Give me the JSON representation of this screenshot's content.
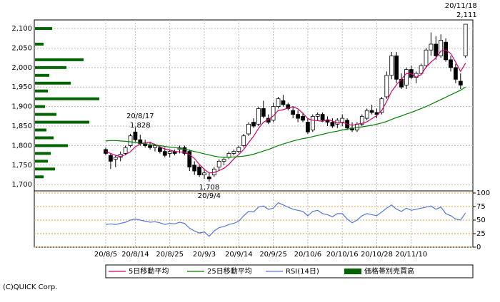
{
  "chart_data": {
    "type": "candlestick",
    "categories": [
      "20/8/5",
      null,
      null,
      null,
      null,
      null,
      "20/8/14",
      null,
      null,
      null,
      null,
      null,
      null,
      "20/8/25",
      null,
      null,
      null,
      null,
      null,
      null,
      "20/9/3",
      null,
      null,
      null,
      null,
      null,
      null,
      "20/9/14",
      null,
      null,
      null,
      null,
      null,
      null,
      "20/9/25",
      null,
      null,
      null,
      null,
      null,
      null,
      "20/10/6",
      null,
      null,
      null,
      null,
      null,
      null,
      "20/10/16",
      null,
      null,
      null,
      null,
      null,
      null,
      "20/10/28",
      null,
      null,
      null,
      null,
      null,
      null,
      "20/11/10",
      null,
      null,
      null,
      null,
      null,
      null,
      null,
      null,
      null,
      null,
      null
    ],
    "open": [
      1790,
      1775,
      1765,
      1770,
      1780,
      1800,
      1835,
      1815,
      1805,
      1800,
      1795,
      1795,
      1785,
      1780,
      1785,
      1790,
      1795,
      1785,
      1750,
      1745,
      1725,
      1720,
      1725,
      1745,
      1760,
      1770,
      1780,
      1785,
      1800,
      1830,
      1860,
      1855,
      1895,
      1870,
      1865,
      1900,
      1915,
      1905,
      1890,
      1880,
      1875,
      1860,
      1840,
      1875,
      1880,
      1865,
      1860,
      1855,
      1860,
      1865,
      1845,
      1840,
      1855,
      1870,
      1890,
      1885,
      1885,
      1925,
      1980,
      2030,
      1970,
      1955,
      1995,
      1975,
      1985,
      2005,
      2045,
      2060,
      2030,
      2065,
      2020,
      2000,
      1965,
      2030
    ],
    "high": [
      1795,
      1780,
      1775,
      1785,
      1800,
      1830,
      1845,
      1828,
      1815,
      1810,
      1805,
      1800,
      1795,
      1790,
      1790,
      1800,
      1800,
      1790,
      1760,
      1750,
      1740,
      1730,
      1745,
      1765,
      1770,
      1785,
      1790,
      1800,
      1830,
      1860,
      1870,
      1900,
      1915,
      1880,
      1910,
      1925,
      1930,
      1910,
      1900,
      1890,
      1885,
      1870,
      1880,
      1885,
      1885,
      1875,
      1870,
      1870,
      1880,
      1870,
      1860,
      1860,
      1880,
      1895,
      1905,
      1895,
      1925,
      1990,
      2040,
      2040,
      1985,
      2000,
      2005,
      1990,
      2010,
      2050,
      2090,
      2080,
      2085,
      2075,
      2030,
      2010,
      1985,
      2111
    ],
    "low": [
      1775,
      1740,
      1745,
      1760,
      1775,
      1795,
      1810,
      1800,
      1795,
      1790,
      1785,
      1780,
      1770,
      1770,
      1775,
      1780,
      1775,
      1735,
      1725,
      1720,
      1715,
      1708,
      1720,
      1735,
      1750,
      1765,
      1775,
      1780,
      1795,
      1825,
      1845,
      1850,
      1870,
      1855,
      1860,
      1895,
      1900,
      1890,
      1870,
      1860,
      1860,
      1830,
      1835,
      1865,
      1860,
      1850,
      1845,
      1845,
      1850,
      1840,
      1835,
      1835,
      1850,
      1865,
      1880,
      1870,
      1880,
      1920,
      1970,
      1960,
      1945,
      1945,
      1970,
      1960,
      1980,
      2000,
      2030,
      2020,
      2025,
      2015,
      1990,
      1960,
      1945,
      2025
    ],
    "close": [
      1780,
      1760,
      1770,
      1778,
      1795,
      1825,
      1815,
      1805,
      1800,
      1795,
      1800,
      1785,
      1775,
      1785,
      1780,
      1795,
      1780,
      1745,
      1735,
      1725,
      1730,
      1715,
      1740,
      1760,
      1765,
      1780,
      1785,
      1795,
      1825,
      1855,
      1850,
      1895,
      1875,
      1860,
      1900,
      1920,
      1905,
      1895,
      1880,
      1870,
      1865,
      1835,
      1875,
      1880,
      1865,
      1860,
      1850,
      1865,
      1870,
      1845,
      1840,
      1855,
      1875,
      1890,
      1885,
      1880,
      1920,
      1980,
      2030,
      1970,
      1950,
      1995,
      1975,
      1985,
      2005,
      2045,
      2060,
      2030,
      2070,
      2020,
      2000,
      1970,
      1955,
      2111
    ],
    "ylim": [
      1684,
      2122
    ],
    "yticks": [
      {
        "value": 1700,
        "label": "1,700"
      },
      {
        "value": 1750,
        "label": "1,750"
      },
      {
        "value": 1800,
        "label": "1,800"
      },
      {
        "value": 1850,
        "label": "1,850"
      },
      {
        "value": 1900,
        "label": "1,900"
      },
      {
        "value": 1950,
        "label": "1,950"
      },
      {
        "value": 2000,
        "label": "2,000"
      },
      {
        "value": 2050,
        "label": "2,050"
      },
      {
        "value": 2100,
        "label": "2,100"
      }
    ],
    "series": [
      {
        "name": "5日移動平均",
        "color": "#d0006f",
        "values": [
          1785,
          1780,
          1775,
          1772,
          1777,
          1784,
          1797,
          1804,
          1808,
          1808,
          1803,
          1797,
          1791,
          1789,
          1785,
          1784,
          1783,
          1777,
          1767,
          1752,
          1739,
          1730,
          1731,
          1736,
          1742,
          1752,
          1766,
          1777,
          1790,
          1808,
          1824,
          1844,
          1860,
          1867,
          1876,
          1890,
          1892,
          1896,
          1900,
          1894,
          1883,
          1869,
          1865,
          1864,
          1862,
          1867,
          1863,
          1858,
          1860,
          1855,
          1852,
          1855,
          1857,
          1861,
          1869,
          1877,
          1890,
          1913,
          1939,
          1956,
          1970,
          1985,
          1984,
          1975,
          1982,
          2001,
          2014,
          2025,
          2042,
          2045,
          2036,
          2014,
          1990,
          2011
        ]
      },
      {
        "name": "25日移動平均",
        "color": "#008000",
        "values": [
          1812,
          1813,
          1813,
          1812,
          1811,
          1810,
          1808,
          1806,
          1805,
          1803,
          1801,
          1800,
          1798,
          1796,
          1795,
          1793,
          1791,
          1788,
          1785,
          1782,
          1779,
          1776,
          1773,
          1771,
          1770,
          1770,
          1771,
          1772,
          1773,
          1775,
          1778,
          1782,
          1786,
          1790,
          1795,
          1800,
          1804,
          1808,
          1812,
          1815,
          1818,
          1820,
          1823,
          1826,
          1829,
          1832,
          1835,
          1837,
          1840,
          1842,
          1844,
          1846,
          1848,
          1850,
          1852,
          1855,
          1858,
          1862,
          1867,
          1872,
          1876,
          1881,
          1885,
          1890,
          1895,
          1900,
          1906,
          1912,
          1918,
          1924,
          1930,
          1936,
          1942,
          1950
        ]
      }
    ],
    "rsi": {
      "name": "RSI(14日)",
      "color": "#5577dd",
      "ylim": [
        0,
        100
      ],
      "yticks": [
        0,
        25,
        50,
        75,
        100
      ],
      "values": [
        42,
        43,
        42,
        44,
        46,
        50,
        52,
        50,
        48,
        46,
        47,
        45,
        42,
        44,
        43,
        46,
        44,
        35,
        30,
        26,
        28,
        20,
        30,
        36,
        38,
        42,
        44,
        48,
        58,
        66,
        65,
        74,
        76,
        70,
        72,
        82,
        78,
        74,
        70,
        68,
        66,
        58,
        66,
        68,
        62,
        60,
        56,
        62,
        62,
        52,
        45,
        50,
        58,
        62,
        60,
        58,
        65,
        72,
        78,
        70,
        66,
        72,
        68,
        70,
        72,
        74,
        76,
        70,
        74,
        62,
        58,
        52,
        50,
        63
      ]
    },
    "price_volume": {
      "name": "価格帯別売買高",
      "color": "#006400",
      "xlim": [
        0,
        100
      ],
      "prices": [
        2100,
        2060,
        2020,
        2000,
        1980,
        1960,
        1940,
        1920,
        1900,
        1880,
        1860,
        1840,
        1820,
        1800,
        1780,
        1760,
        1740,
        1720
      ],
      "values": [
        24,
        12,
        68,
        44,
        20,
        50,
        18,
        90,
        14,
        30,
        76,
        16,
        26,
        46,
        22,
        18,
        28,
        12
      ]
    },
    "annotations": [
      {
        "label": "20/8/17",
        "value": 1828,
        "value_label": "1,828",
        "position": "above"
      },
      {
        "label": "20/9/4",
        "value": 1708,
        "value_label": "1,708",
        "position": "below"
      },
      {
        "label": "20/11/18",
        "value": 2111,
        "value_label": "2,111",
        "position": "above"
      }
    ],
    "copyright": "(C)QUICK Corp."
  }
}
